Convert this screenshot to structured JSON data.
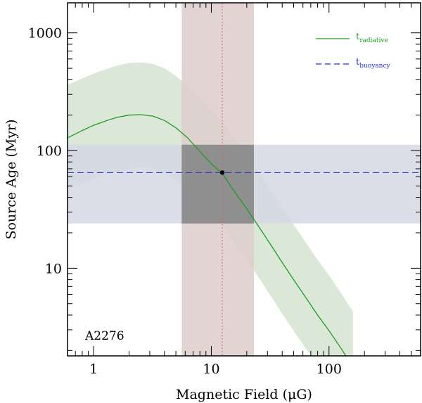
{
  "chart_data": {
    "type": "line",
    "xscale": "log",
    "yscale": "log",
    "xlabel": "Magnetic Field (μG)",
    "ylabel": "Source Age (Myr)",
    "xlim": [
      0.6,
      600
    ],
    "ylim": [
      1.8,
      1800
    ],
    "xticks": [
      1,
      10,
      100
    ],
    "xtick_labels": [
      "1",
      "10",
      "100"
    ],
    "yticks": [
      10,
      100,
      1000
    ],
    "ytick_labels": [
      "10",
      "100",
      "1000"
    ],
    "annotation": "A2276",
    "series": [
      {
        "name": "t_radiative",
        "legend_main": "t",
        "legend_sub": "radiative",
        "color": "#1f9e1f",
        "style": "solid",
        "x": [
          0.6,
          0.8,
          1.0,
          1.3,
          1.6,
          2.0,
          2.5,
          3.2,
          4.0,
          5.0,
          6.3,
          8.0,
          10,
          12.4,
          15,
          20,
          25,
          32,
          40,
          50,
          63,
          80,
          100,
          130,
          150,
          160
        ],
        "values": [
          128,
          148,
          164,
          180,
          192,
          200,
          202,
          196,
          180,
          156,
          128,
          98,
          77,
          64,
          48,
          32,
          23,
          15.8,
          11.2,
          8.0,
          5.7,
          4.0,
          2.95,
          2.0,
          1.6,
          1.45
        ],
        "band_upper": [
          360,
          410,
          450,
          495,
          530,
          555,
          560,
          545,
          500,
          430,
          355,
          272,
          215,
          178,
          136,
          90,
          66,
          46,
          33,
          23.5,
          16.8,
          11.8,
          8.7,
          5.9,
          4.7,
          4.3
        ],
        "band_lower": [
          47,
          53,
          58,
          63,
          67,
          70,
          72,
          70,
          64,
          56,
          46,
          35,
          28,
          23.5,
          17.6,
          11.8,
          8.5,
          5.8,
          4.1,
          2.95,
          2.1,
          1.5,
          1.1,
          0.75,
          0.6,
          0.55
        ]
      },
      {
        "name": "t_buoyancy",
        "legend_main": "t",
        "legend_sub": "buoyancy",
        "color": "#2233cc",
        "style": "dashed",
        "value": 65,
        "band": [
          24,
          112
        ]
      }
    ],
    "b_field": {
      "value": 12.4,
      "band": [
        5.6,
        23
      ],
      "color": "#e06060",
      "style": "dotted"
    },
    "intersection": {
      "x": 12.4,
      "y": 65
    },
    "colors": {
      "radiative_band": "#d7e5d3",
      "buoyancy_band": "#d5d7e5",
      "field_band": "#dccdcb",
      "overlap": "#8f8f8f"
    }
  }
}
